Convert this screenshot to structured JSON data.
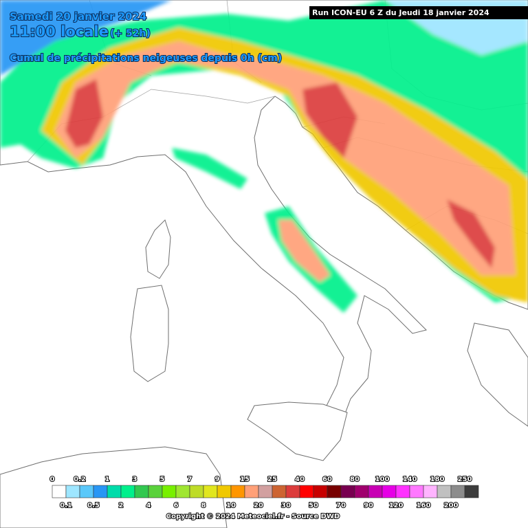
{
  "header": {
    "date": "Samedi 20 janvier 2024",
    "time": "11:00 locale",
    "lead": "(+ 52h)",
    "description": "Cumul de précipitations neigeuses depuis 0h (cm)",
    "run": "Run ICON-EU 6 Z du Jeudi 18 janvier 2024"
  },
  "legend": {
    "thresholds": [
      0,
      0.1,
      0.2,
      0.5,
      1,
      2,
      3,
      4,
      5,
      6,
      7,
      8,
      9,
      10,
      15,
      20,
      25,
      30,
      40,
      50,
      60,
      70,
      80,
      90,
      100,
      120,
      140,
      160,
      180,
      200,
      250
    ],
    "colors": [
      "#ffffff",
      "#9ee6ff",
      "#5ac8fa",
      "#2896f5",
      "#00dcaa",
      "#00f08c",
      "#32c850",
      "#5ad23c",
      "#78f000",
      "#a0e632",
      "#bedc28",
      "#e1e61e",
      "#f0c800",
      "#ff9600",
      "#ffa078",
      "#d2a0a0",
      "#cd6432",
      "#dc3c3c",
      "#ff0000",
      "#c80000",
      "#780000",
      "#780050",
      "#a0006e",
      "#c800b4",
      "#e600e6",
      "#ff32ff",
      "#ff78ff",
      "#ffb4ff",
      "#c0c0c0",
      "#8c8c8c",
      "#3c3c3c"
    ]
  },
  "footer": {
    "copyright": "Copyright © 2024 Meteociel.fr - Source DWD"
  }
}
